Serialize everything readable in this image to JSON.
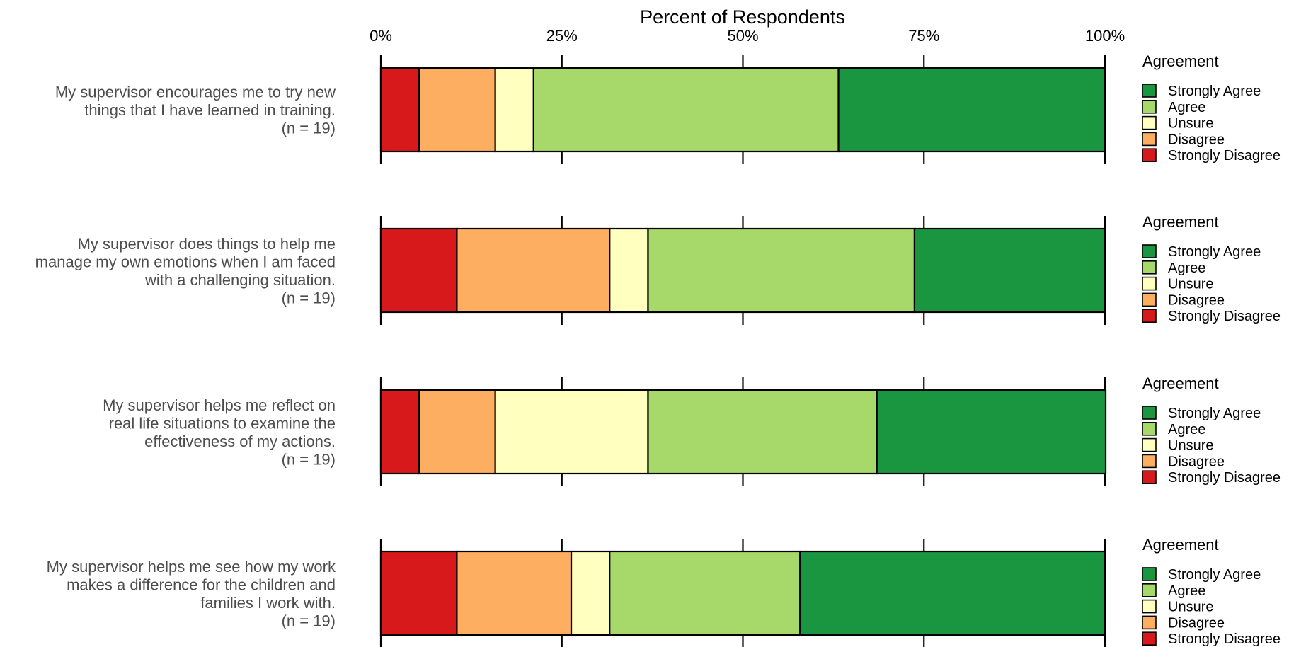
{
  "chart_data": {
    "type": "bar",
    "stacked": true,
    "orientation": "horizontal",
    "title": "Percent of Respondents",
    "xlim": [
      0,
      100
    ],
    "x_ticks": [
      "0%",
      "25%",
      "50%",
      "75%",
      "100%"
    ],
    "x_tick_values": [
      0,
      25,
      50,
      75,
      100
    ],
    "categories": [
      {
        "lines": [
          "My supervisor encourages me to try new",
          "things that I have learned in training.",
          "(n = 19)"
        ]
      },
      {
        "lines": [
          "My supervisor does things to help me",
          "manage my own emotions when I am faced",
          "with a challenging situation.",
          "(n = 19)"
        ]
      },
      {
        "lines": [
          "My supervisor helps me reflect on",
          "real life situations to examine the",
          "effectiveness of my actions.",
          "(n = 19)"
        ]
      },
      {
        "lines": [
          "My supervisor helps me see how my work",
          "makes a difference for the children and",
          "families I work with.",
          "(n = 19)"
        ]
      }
    ],
    "series": [
      {
        "name": "Strongly Disagree",
        "color": "#d7191c",
        "values": [
          5.3,
          10.5,
          5.3,
          10.5
        ]
      },
      {
        "name": "Disagree",
        "color": "#fdae61",
        "values": [
          10.5,
          21.1,
          10.5,
          15.8
        ]
      },
      {
        "name": "Unsure",
        "color": "#ffffbf",
        "values": [
          5.3,
          5.3,
          21.1,
          5.3
        ]
      },
      {
        "name": "Agree",
        "color": "#a6d96a",
        "values": [
          42.1,
          36.8,
          31.6,
          26.3
        ]
      },
      {
        "name": "Strongly Agree",
        "color": "#1a9641",
        "values": [
          36.8,
          26.3,
          31.6,
          42.1
        ]
      }
    ],
    "legend": {
      "title": "Agreement",
      "position": "right",
      "order": [
        "Strongly Agree",
        "Agree",
        "Unsure",
        "Disagree",
        "Strongly Disagree"
      ]
    },
    "grid": false
  }
}
